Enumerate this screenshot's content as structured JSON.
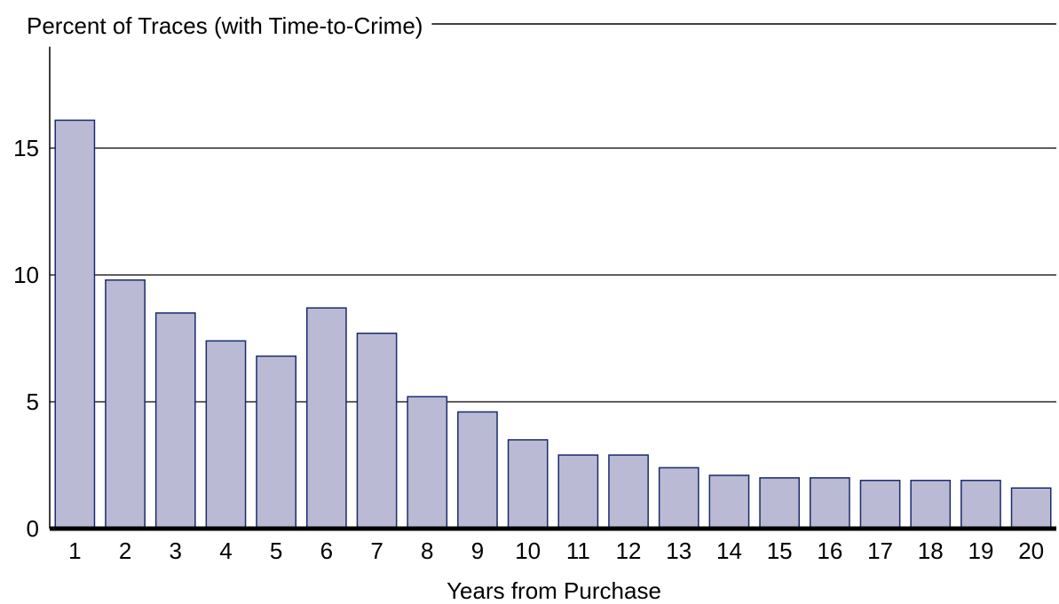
{
  "chart_data": {
    "type": "bar",
    "title": "",
    "ylabel": "Percent of Traces (with Time-to-Crime)",
    "xlabel": "Years from Purchase",
    "categories": [
      "1",
      "2",
      "3",
      "4",
      "5",
      "6",
      "7",
      "8",
      "9",
      "10",
      "11",
      "12",
      "13",
      "14",
      "15",
      "16",
      "17",
      "18",
      "19",
      "20"
    ],
    "values": [
      16.1,
      9.8,
      8.5,
      7.4,
      6.8,
      8.7,
      7.7,
      5.2,
      4.6,
      3.5,
      2.9,
      2.9,
      2.4,
      2.1,
      2.0,
      2.0,
      1.9,
      1.9,
      1.9,
      1.6
    ],
    "ylim": [
      0,
      19
    ],
    "yticks": [
      0,
      5,
      10,
      15
    ],
    "ytick_labels": [
      "0",
      "5",
      "10",
      "15"
    ],
    "grid": true,
    "bar_fill": "#babad5",
    "bar_stroke": "#1a2a6c"
  }
}
